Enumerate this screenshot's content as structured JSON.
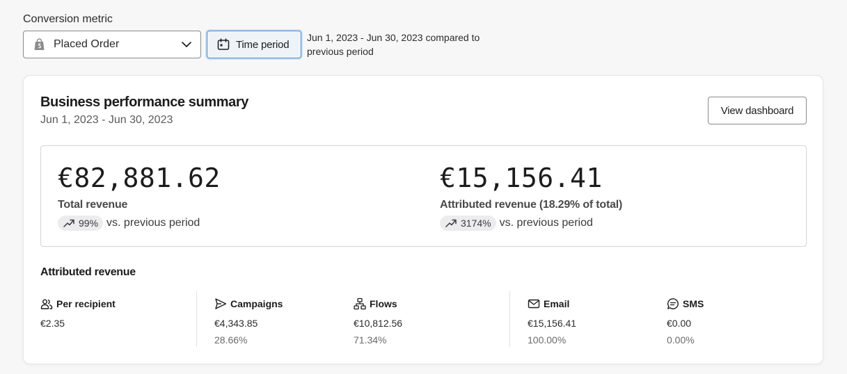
{
  "filters": {
    "metric_label": "Conversion metric",
    "metric_value": "Placed Order",
    "time_period_label": "Time period",
    "range_note": "Jun 1, 2023 - Jun 30, 2023 compared to previous period"
  },
  "summary": {
    "title": "Business performance summary",
    "date_range": "Jun 1, 2023 - Jun 30, 2023",
    "view_dashboard_label": "View dashboard",
    "total": {
      "value": "€82,881.62",
      "label": "Total revenue",
      "change": "99%",
      "vs": "vs. previous period"
    },
    "attributed": {
      "value": "€15,156.41",
      "label": "Attributed revenue (18.29% of total)",
      "change": "3174%",
      "vs": "vs. previous period"
    }
  },
  "attributed_section": {
    "title": "Attributed revenue",
    "per_recipient": {
      "label": "Per recipient",
      "value": "€2.35",
      "icon": "people-icon"
    },
    "campaigns": {
      "label": "Campaigns",
      "value": "€4,343.85",
      "pct": "28.66%",
      "icon": "send-icon"
    },
    "flows": {
      "label": "Flows",
      "value": "€10,812.56",
      "pct": "71.34%",
      "icon": "flow-icon"
    },
    "email": {
      "label": "Email",
      "value": "€15,156.41",
      "pct": "100.00%",
      "icon": "mail-icon"
    },
    "sms": {
      "label": "SMS",
      "value": "€0.00",
      "pct": "0.00%",
      "icon": "sms-icon"
    }
  },
  "colors": {
    "accent_border": "#4a8cd1",
    "pill_bg": "#ececee",
    "card_bg": "#ffffff",
    "page_bg": "#f7f7f8"
  }
}
